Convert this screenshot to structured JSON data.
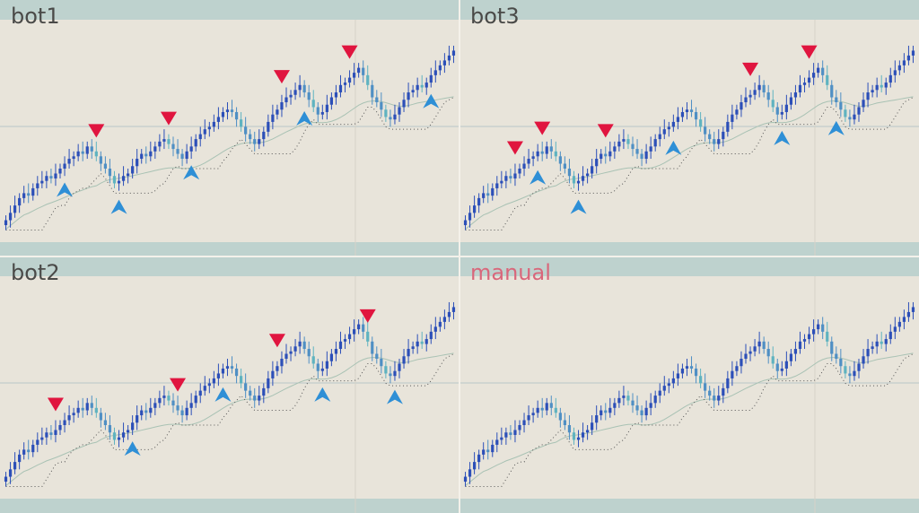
{
  "colors": {
    "background": "#e8e4da",
    "volume_band": "#b9cfcc",
    "candle_up": "#2c4fb8",
    "candle_down": "#4f8fc4",
    "candle_light": "#5fb3c0",
    "signal_sell": "#e0153f",
    "signal_buy": "#2e8fd6",
    "title_default": "#4a4a48",
    "title_manual": "#d9667a"
  },
  "chart_data": [
    {
      "type": "candlestick",
      "title": "bot1",
      "close": [
        203,
        206,
        209,
        212,
        214,
        213,
        216,
        218,
        219,
        221,
        220,
        222,
        224,
        226,
        228,
        229,
        231,
        230,
        233,
        231,
        229,
        226,
        224,
        221,
        218,
        219,
        221,
        222,
        225,
        228,
        230,
        229,
        231,
        233,
        235,
        236,
        234,
        232,
        230,
        228,
        231,
        233,
        236,
        238,
        240,
        241,
        243,
        245,
        247,
        248,
        247,
        244,
        241,
        238,
        236,
        234,
        236,
        239,
        243,
        246,
        248,
        251,
        253,
        254,
        256,
        258,
        255,
        252,
        249,
        246,
        247,
        250,
        253,
        255,
        258,
        259,
        261,
        263,
        265,
        262,
        258,
        253,
        251,
        248,
        245,
        244,
        246,
        249,
        252,
        255,
        256,
        258,
        257,
        259,
        262,
        264,
        266,
        268,
        270,
        272
      ],
      "signals": [
        {
          "type": "sell",
          "index": 20
        },
        {
          "type": "buy",
          "index": 25
        },
        {
          "type": "sell",
          "index": 36
        },
        {
          "type": "buy",
          "index": 41
        },
        {
          "type": "sell",
          "index": 61
        },
        {
          "type": "buy",
          "index": 66
        },
        {
          "type": "sell",
          "index": 76
        },
        {
          "type": "buy",
          "index": 94
        },
        {
          "type": "buy",
          "index": 13
        }
      ]
    },
    {
      "type": "candlestick",
      "title": "bot3",
      "close": [
        203,
        206,
        209,
        212,
        214,
        213,
        216,
        218,
        219,
        221,
        220,
        222,
        224,
        226,
        228,
        229,
        231,
        230,
        233,
        231,
        229,
        226,
        224,
        221,
        218,
        219,
        221,
        222,
        225,
        228,
        230,
        229,
        231,
        233,
        235,
        236,
        234,
        232,
        230,
        228,
        231,
        233,
        236,
        238,
        240,
        241,
        243,
        245,
        247,
        248,
        247,
        244,
        241,
        238,
        236,
        234,
        236,
        239,
        243,
        246,
        248,
        251,
        253,
        254,
        256,
        258,
        255,
        252,
        249,
        246,
        247,
        250,
        253,
        255,
        258,
        259,
        261,
        263,
        265,
        262,
        258,
        253,
        251,
        248,
        245,
        244,
        246,
        249,
        252,
        255,
        256,
        258,
        257,
        259,
        262,
        264,
        266,
        268,
        270,
        272
      ],
      "signals": [
        {
          "type": "sell",
          "index": 11
        },
        {
          "type": "sell",
          "index": 17
        },
        {
          "type": "buy",
          "index": 16
        },
        {
          "type": "sell",
          "index": 31
        },
        {
          "type": "buy",
          "index": 25
        },
        {
          "type": "buy",
          "index": 46
        },
        {
          "type": "sell",
          "index": 63
        },
        {
          "type": "buy",
          "index": 70
        },
        {
          "type": "sell",
          "index": 76
        },
        {
          "type": "buy",
          "index": 82
        }
      ]
    },
    {
      "type": "candlestick",
      "title": "bot2",
      "close": [
        203,
        206,
        209,
        212,
        214,
        213,
        216,
        218,
        219,
        221,
        220,
        222,
        224,
        226,
        228,
        229,
        231,
        230,
        233,
        231,
        229,
        226,
        224,
        221,
        218,
        219,
        221,
        222,
        225,
        228,
        230,
        229,
        231,
        233,
        235,
        236,
        234,
        232,
        230,
        228,
        231,
        233,
        236,
        238,
        240,
        241,
        243,
        245,
        247,
        248,
        247,
        244,
        241,
        238,
        236,
        234,
        236,
        239,
        243,
        246,
        248,
        251,
        253,
        254,
        256,
        258,
        255,
        252,
        249,
        246,
        247,
        250,
        253,
        255,
        258,
        259,
        261,
        263,
        265,
        262,
        258,
        253,
        251,
        248,
        245,
        244,
        246,
        249,
        252,
        255,
        256,
        258,
        257,
        259,
        262,
        264,
        266,
        268,
        270,
        272
      ],
      "signals": [
        {
          "type": "sell",
          "index": 11
        },
        {
          "type": "buy",
          "index": 28
        },
        {
          "type": "sell",
          "index": 38
        },
        {
          "type": "buy",
          "index": 48
        },
        {
          "type": "sell",
          "index": 60
        },
        {
          "type": "buy",
          "index": 70
        },
        {
          "type": "sell",
          "index": 80
        },
        {
          "type": "buy",
          "index": 86
        }
      ]
    },
    {
      "type": "candlestick",
      "title": "manual",
      "close": [
        203,
        206,
        209,
        212,
        214,
        213,
        216,
        218,
        219,
        221,
        220,
        222,
        224,
        226,
        228,
        229,
        231,
        230,
        233,
        231,
        229,
        226,
        224,
        221,
        218,
        219,
        221,
        222,
        225,
        228,
        230,
        229,
        231,
        233,
        235,
        236,
        234,
        232,
        230,
        228,
        231,
        233,
        236,
        238,
        240,
        241,
        243,
        245,
        247,
        248,
        247,
        244,
        241,
        238,
        236,
        234,
        236,
        239,
        243,
        246,
        248,
        251,
        253,
        254,
        256,
        258,
        255,
        252,
        249,
        246,
        247,
        250,
        253,
        255,
        258,
        259,
        261,
        263,
        265,
        262,
        258,
        253,
        251,
        248,
        245,
        244,
        246,
        249,
        252,
        255,
        256,
        258,
        257,
        259,
        262,
        264,
        266,
        268,
        270,
        272
      ],
      "signals": []
    }
  ]
}
